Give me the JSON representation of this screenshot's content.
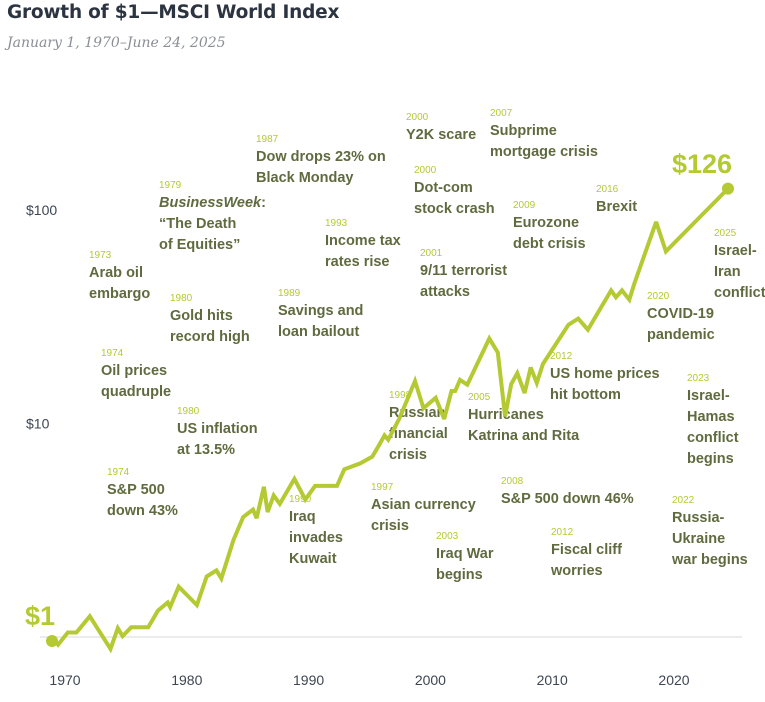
{
  "header": {
    "title": "Growth of $1—MSCI World Index",
    "subtitle": "January 1, 1970–June 24, 2025"
  },
  "colors": {
    "line": "#b5c933",
    "annotation_year": "#b5c933",
    "annotation_text": "#5f6b3f",
    "axis_text": "#3d4652",
    "baseline": "#d9d9d9",
    "title": "#2b3440",
    "subtitle": "#8a8f96"
  },
  "chart_data": {
    "type": "line",
    "title": "Growth of $1—MSCI World Index",
    "subtitle": "January 1, 1970–June 24, 2025",
    "xlabel": "",
    "ylabel": "",
    "yscale": "log",
    "xlim": [
      1970,
      2025.5
    ],
    "ylim": [
      0.8,
      200
    ],
    "grid": false,
    "baseline_value": 1,
    "x_ticks": [
      1970,
      1980,
      1990,
      2000,
      2010,
      2020
    ],
    "x_tick_labels": [
      "1970",
      "1980",
      "1990",
      "2000",
      "2010",
      "2020"
    ],
    "y_ticks": [
      10,
      100
    ],
    "y_tick_labels": [
      "$10",
      "$100"
    ],
    "start_label": "$1",
    "end_label": "$126",
    "start_value": 1,
    "end_value": 126,
    "series": [
      {
        "name": "MSCI World Index growth of $1",
        "x": [
          1970.0,
          1970.5,
          1971.3,
          1972.0,
          1973.1,
          1974.8,
          1975.4,
          1975.8,
          1976.5,
          1977.9,
          1978.7,
          1979.5,
          1979.7,
          1980.4,
          1981.9,
          1982.7,
          1983.5,
          1983.9,
          1984.9,
          1985.7,
          1986.5,
          1986.8,
          1987.4,
          1987.7,
          1988.2,
          1988.7,
          1989.9,
          1990.8,
          1991.6,
          1992.1,
          1993.4,
          1994.0,
          1995.3,
          1996.3,
          1996.9,
          1997.3,
          1997.6,
          1998.5,
          1999.8,
          2000.5,
          2001.5,
          2002.2,
          2002.8,
          2003.1,
          2003.5,
          2004.1,
          2005.9,
          2006.6,
          2007.2,
          2007.7,
          2008.2,
          2008.8,
          2009.3,
          2009.8,
          2010.3,
          2012.4,
          2013.2,
          2014.0,
          2015.9,
          2016.3,
          2016.8,
          2017.4,
          2017.8,
          2019.6,
          2020.4,
          2025.5
        ],
        "y": [
          1.0,
          0.92,
          1.05,
          1.05,
          1.25,
          0.88,
          1.1,
          1.01,
          1.11,
          1.11,
          1.33,
          1.45,
          1.38,
          1.72,
          1.41,
          1.92,
          2.05,
          1.88,
          2.85,
          3.65,
          3.95,
          3.6,
          5.05,
          3.85,
          4.6,
          4.2,
          5.5,
          4.4,
          5.1,
          5.1,
          5.1,
          6.1,
          6.5,
          7.0,
          8.0,
          8.8,
          8.4,
          10.5,
          15.8,
          11.8,
          13.2,
          10.5,
          14.2,
          14.2,
          16.0,
          15.2,
          25.0,
          21.5,
          10.8,
          15.3,
          17.2,
          13.9,
          18.3,
          15.5,
          19.0,
          29.0,
          31.0,
          27.5,
          42.0,
          39.0,
          42.0,
          38.0,
          45.0,
          88.0,
          64.0,
          126.0
        ]
      }
    ],
    "annotations": [
      {
        "year": "1973",
        "text": [
          "Arab oil",
          "embargo"
        ],
        "position": "upper-left"
      },
      {
        "year": "1974",
        "text": [
          "Oil prices",
          "quadruple"
        ],
        "position": "left"
      },
      {
        "year": "1974",
        "text": [
          "S&P 500",
          "down 43%"
        ],
        "position": "lower-left"
      },
      {
        "year": "1979",
        "text": [
          "BusinessWeek:",
          "“The Death",
          "of Equities”"
        ],
        "position": "upper-left"
      },
      {
        "year": "1980",
        "text": [
          "Gold hits",
          "record high"
        ],
        "position": "left"
      },
      {
        "year": "1980",
        "text": [
          "US inflation",
          "at 13.5%"
        ],
        "position": "left"
      },
      {
        "year": "1987",
        "text": [
          "Dow drops 23% on",
          "Black Monday"
        ],
        "position": "top"
      },
      {
        "year": "1989",
        "text": [
          "Savings and",
          "loan bailout"
        ],
        "position": "upper-middle"
      },
      {
        "year": "1990",
        "text": [
          "Iraq",
          "invades",
          "Kuwait"
        ],
        "position": "lower-middle"
      },
      {
        "year": "1993",
        "text": [
          "Income tax",
          "rates rise"
        ],
        "position": "upper-middle"
      },
      {
        "year": "1997",
        "text": [
          "Asian currency",
          "crisis"
        ],
        "position": "lower-middle"
      },
      {
        "year": "1998",
        "text": [
          "Russian",
          "financial",
          "crisis"
        ],
        "position": "middle"
      },
      {
        "year": "2000",
        "text": [
          "Y2K scare"
        ],
        "position": "top"
      },
      {
        "year": "2000",
        "text": [
          "Dot-com",
          "stock crash"
        ],
        "position": "top"
      },
      {
        "year": "2001",
        "text": [
          "9/11 terrorist",
          "attacks"
        ],
        "position": "upper-middle"
      },
      {
        "year": "2003",
        "text": [
          "Iraq War",
          "begins"
        ],
        "position": "bottom"
      },
      {
        "year": "2005",
        "text": [
          "Hurricanes",
          "Katrina and Rita"
        ],
        "position": "middle"
      },
      {
        "year": "2007",
        "text": [
          "Subprime",
          "mortgage crisis"
        ],
        "position": "top"
      },
      {
        "year": "2008",
        "text": [
          "S&P 500 down 46%"
        ],
        "position": "lower-middle"
      },
      {
        "year": "2009",
        "text": [
          "Eurozone",
          "debt crisis"
        ],
        "position": "upper-middle"
      },
      {
        "year": "2012",
        "text": [
          "US home prices",
          "hit bottom"
        ],
        "position": "middle-right"
      },
      {
        "year": "2012",
        "text": [
          "Fiscal cliff",
          "worries"
        ],
        "position": "bottom"
      },
      {
        "year": "2016",
        "text": [
          "Brexit"
        ],
        "position": "upper-right"
      },
      {
        "year": "2020",
        "text": [
          "COVID-19",
          "pandemic"
        ],
        "position": "right"
      },
      {
        "year": "2022",
        "text": [
          "Russia-",
          "Ukraine",
          "war begins"
        ],
        "position": "lower-right"
      },
      {
        "year": "2023",
        "text": [
          "Israel-",
          "Hamas",
          "conflict",
          "begins"
        ],
        "position": "right"
      },
      {
        "year": "2025",
        "text": [
          "Israel-",
          "Iran",
          "conflict"
        ],
        "position": "right"
      }
    ]
  }
}
